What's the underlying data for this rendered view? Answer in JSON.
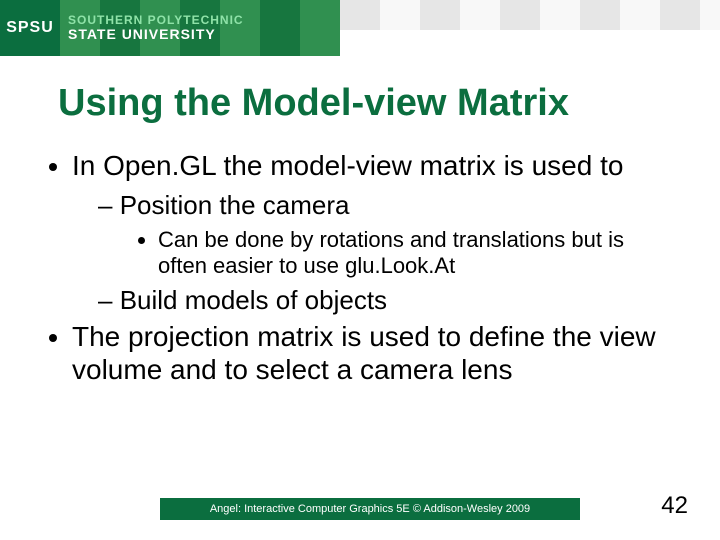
{
  "colors": {
    "brand_green": "#0b6e3f",
    "banner_green": "#17763f",
    "banner_green_light": "#309050",
    "stripe_light": "#f8f8f8",
    "stripe_dark": "#e6e6e6",
    "title_color": "#0b6e3f",
    "body_text": "#000000",
    "background": "#ffffff",
    "logo_text": "#ffffff",
    "uni_line1_color": "#8fe2a8"
  },
  "typography": {
    "title_fontsize": 38,
    "lvl1_fontsize": 28,
    "lvl2_fontsize": 26,
    "lvl3_fontsize": 22,
    "footer_fontsize": 11,
    "page_num_fontsize": 24,
    "logo_fontsize": 16,
    "uni_line_fontsize": 12
  },
  "logo": {
    "acronym": "SPSU",
    "line1": "SOUTHERN POLYTECHNIC",
    "line2": "STATE UNIVERSITY"
  },
  "title": "Using the Model-view Matrix",
  "bullets": {
    "b1": "In Open.GL the model-view matrix is used to",
    "b1_1": "Position the camera",
    "b1_1_1": "Can be done by rotations and translations but is often easier to use glu.Look.At",
    "b1_2": "Build models of objects",
    "b2": "The projection matrix is used to define the view volume and to select a camera lens"
  },
  "footer": "Angel: Interactive Computer Graphics 5E © Addison-Wesley 2009",
  "page_number": "42"
}
